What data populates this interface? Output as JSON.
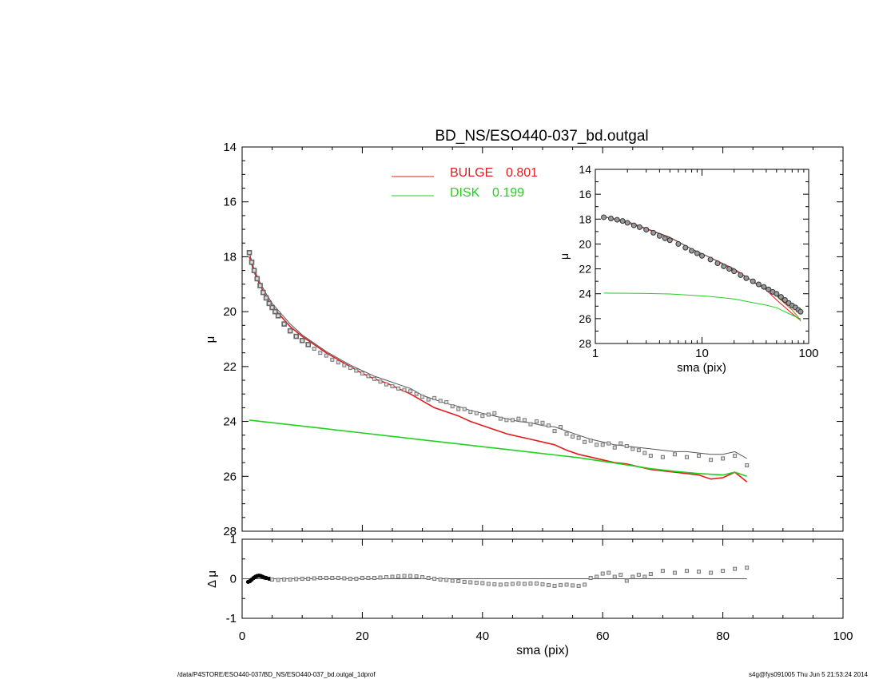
{
  "title": "BD_NS/ESO440-037_bd.outgal",
  "footer_left": "/data/P4STORE/ESO440-037/BD_NS/ESO440-037_bd.outgal_1dprof",
  "footer_right": "s4g@fys091005  Thu Jun  5 21:53:24 2014",
  "colors": {
    "bulge": "#e41a1c",
    "disk": "#1fd21f",
    "model": "#555555",
    "points": "#888888",
    "axis": "#000000"
  },
  "chart_data": [
    {
      "type": "line",
      "panel": "main",
      "title": "BD_NS/ESO440-037_bd.outgal",
      "xlabel": "",
      "ylabel": "μ",
      "xlim": [
        0,
        100
      ],
      "ylim": [
        28,
        14
      ],
      "yticks": [
        "14",
        "16",
        "18",
        "20",
        "22",
        "24",
        "26",
        "28"
      ],
      "legend": [
        {
          "name": "BULGE",
          "value": "0.801",
          "color": "#e41a1c"
        },
        {
          "name": "DISK",
          "value": "0.199",
          "color": "#1fd21f"
        }
      ],
      "legend_placement": "top-center",
      "series": [
        {
          "name": "BULGE",
          "color": "#e41a1c",
          "x": [
            1.2,
            2,
            3,
            4,
            5,
            6,
            8,
            10,
            12,
            14,
            16,
            18,
            20,
            22,
            24,
            26,
            28,
            30,
            32,
            34,
            36,
            38,
            40,
            42,
            44,
            46,
            48,
            50,
            52,
            54,
            56,
            58,
            60,
            62,
            64,
            66,
            68,
            70,
            72,
            74,
            76,
            78,
            80,
            82,
            84
          ],
          "y": [
            18.0,
            18.55,
            19.05,
            19.45,
            19.8,
            20.05,
            20.55,
            20.9,
            21.2,
            21.5,
            21.75,
            22.0,
            22.25,
            22.45,
            22.6,
            22.8,
            23.0,
            23.25,
            23.5,
            23.65,
            23.8,
            24.0,
            24.15,
            24.3,
            24.45,
            24.55,
            24.65,
            24.75,
            24.85,
            25.05,
            25.2,
            25.3,
            25.4,
            25.5,
            25.55,
            25.65,
            25.75,
            25.8,
            25.85,
            25.9,
            25.95,
            26.1,
            26.05,
            25.85,
            26.2
          ]
        },
        {
          "name": "DISK",
          "color": "#1fd21f",
          "x": [
            1.2,
            4,
            8,
            12,
            16,
            20,
            24,
            28,
            32,
            36,
            40,
            44,
            48,
            52,
            56,
            60,
            64,
            68,
            72,
            76,
            80,
            82,
            84
          ],
          "y": [
            23.95,
            24.02,
            24.12,
            24.22,
            24.32,
            24.42,
            24.52,
            24.62,
            24.72,
            24.82,
            24.92,
            25.02,
            25.12,
            25.22,
            25.32,
            25.45,
            25.58,
            25.72,
            25.82,
            25.9,
            25.95,
            25.85,
            26.0
          ]
        },
        {
          "name": "",
          "color": "#555555",
          "x": [
            1.2,
            2,
            3,
            4,
            5,
            6,
            8,
            10,
            12,
            14,
            16,
            18,
            20,
            22,
            24,
            26,
            28,
            30,
            32,
            34,
            36,
            38,
            40,
            42,
            44,
            46,
            48,
            50,
            52,
            54,
            56,
            58,
            60,
            62,
            64,
            66,
            68,
            70,
            72,
            74,
            76,
            78,
            80,
            82,
            84
          ],
          "y": [
            17.85,
            18.45,
            18.95,
            19.35,
            19.7,
            19.95,
            20.45,
            20.85,
            21.15,
            21.45,
            21.7,
            21.95,
            22.15,
            22.35,
            22.5,
            22.65,
            22.8,
            23.05,
            23.2,
            23.35,
            23.45,
            23.6,
            23.7,
            23.8,
            23.9,
            24.0,
            24.05,
            24.15,
            24.2,
            24.35,
            24.5,
            24.65,
            24.75,
            24.85,
            24.9,
            24.95,
            25.0,
            25.05,
            25.1,
            25.1,
            25.15,
            25.2,
            25.2,
            25.1,
            25.35
          ]
        }
      ],
      "points": {
        "x": [
          1.2,
          1.6,
          2.0,
          2.5,
          3.0,
          3.5,
          4.0,
          4.5,
          5.0,
          5.5,
          6,
          7,
          8,
          9,
          10,
          11,
          12,
          13,
          14,
          15,
          16,
          17,
          18,
          19,
          20,
          21,
          22,
          23,
          24,
          25,
          26,
          27,
          28,
          29,
          30,
          31,
          32,
          33,
          34,
          35,
          36,
          37,
          38,
          39,
          40,
          41,
          42,
          43,
          44,
          45,
          46,
          47,
          48,
          49,
          50,
          51,
          52,
          53,
          54,
          55,
          56,
          57,
          58,
          59,
          60,
          61,
          62,
          63,
          64,
          65,
          66,
          67,
          68,
          70,
          72,
          74,
          76,
          78,
          80,
          82,
          84
        ],
        "y": [
          17.85,
          18.2,
          18.5,
          18.8,
          19.05,
          19.3,
          19.5,
          19.7,
          19.85,
          20.0,
          20.15,
          20.45,
          20.7,
          20.9,
          21.05,
          21.2,
          21.35,
          21.5,
          21.6,
          21.75,
          21.85,
          21.95,
          22.05,
          22.15,
          22.25,
          22.35,
          22.45,
          22.55,
          22.65,
          22.72,
          22.8,
          22.85,
          22.9,
          23.0,
          23.1,
          23.2,
          23.15,
          23.25,
          23.3,
          23.45,
          23.55,
          23.55,
          23.65,
          23.7,
          23.8,
          23.75,
          23.7,
          23.9,
          23.95,
          23.95,
          23.9,
          23.95,
          24.1,
          24.0,
          24.05,
          24.15,
          24.35,
          24.2,
          24.45,
          24.55,
          24.6,
          24.75,
          24.7,
          24.85,
          24.85,
          24.8,
          24.95,
          24.8,
          24.9,
          25.0,
          25.05,
          25.15,
          25.25,
          25.3,
          25.2,
          25.3,
          25.25,
          25.4,
          25.35,
          25.25,
          25.6
        ]
      }
    },
    {
      "type": "scatter",
      "panel": "residual",
      "xlabel": "sma (pix)",
      "ylabel": "Δ μ",
      "xlim": [
        0,
        100
      ],
      "ylim": [
        -1,
        1
      ],
      "xticks": [
        "0",
        "20",
        "40",
        "60",
        "80",
        "100"
      ],
      "yticks": [
        "-1",
        "0",
        "1"
      ],
      "zero_line_x": [
        0,
        84
      ],
      "points": {
        "x": [
          1.0,
          1.3,
          1.6,
          1.9,
          2.2,
          2.5,
          2.8,
          3.1,
          3.4,
          3.7,
          4.0,
          4.5,
          5,
          6,
          7,
          8,
          9,
          10,
          11,
          12,
          13,
          14,
          15,
          16,
          17,
          18,
          19,
          20,
          21,
          22,
          23,
          24,
          25,
          26,
          27,
          28,
          29,
          30,
          31,
          32,
          33,
          34,
          35,
          36,
          37,
          38,
          39,
          40,
          41,
          42,
          43,
          44,
          45,
          46,
          47,
          48,
          49,
          50,
          51,
          52,
          53,
          54,
          55,
          56,
          57,
          58,
          59,
          60,
          61,
          62,
          63,
          64,
          65,
          66,
          67,
          68,
          70,
          72,
          74,
          76,
          78,
          80,
          82,
          84
        ],
        "y": [
          -0.08,
          -0.06,
          -0.02,
          0.02,
          0.05,
          0.07,
          0.08,
          0.07,
          0.05,
          0.03,
          0.02,
          0.0,
          -0.02,
          -0.03,
          -0.02,
          -0.02,
          -0.01,
          0.0,
          0.0,
          0.01,
          0.02,
          0.02,
          0.02,
          0.02,
          0.01,
          0.0,
          0.0,
          0.02,
          0.02,
          0.02,
          0.03,
          0.04,
          0.05,
          0.06,
          0.07,
          0.07,
          0.06,
          0.04,
          0.02,
          0.0,
          -0.02,
          -0.03,
          -0.05,
          -0.06,
          -0.08,
          -0.09,
          -0.1,
          -0.11,
          -0.13,
          -0.14,
          -0.15,
          -0.14,
          -0.13,
          -0.12,
          -0.13,
          -0.12,
          -0.12,
          -0.14,
          -0.16,
          -0.18,
          -0.16,
          -0.15,
          -0.17,
          -0.18,
          -0.15,
          0.02,
          0.05,
          0.13,
          0.15,
          0.05,
          0.1,
          -0.05,
          0.05,
          0.1,
          0.05,
          0.12,
          0.2,
          0.15,
          0.2,
          0.18,
          0.15,
          0.2,
          0.25,
          0.28
        ]
      }
    },
    {
      "type": "line",
      "panel": "inset",
      "xlabel": "sma (pix)",
      "ylabel": "μ",
      "xscale": "log",
      "xlim": [
        1,
        100
      ],
      "ylim": [
        28,
        14
      ],
      "xticks": [
        "1",
        "10",
        "100"
      ],
      "yticks": [
        "14",
        "16",
        "18",
        "20",
        "22",
        "24",
        "26",
        "28"
      ],
      "series": [
        {
          "name": "BULGE",
          "color": "#e41a1c",
          "x": [
            1.2,
            2,
            3,
            5,
            8,
            12,
            20,
            30,
            40,
            50,
            60,
            70,
            80,
            84
          ],
          "y": [
            17.8,
            18.3,
            18.8,
            19.5,
            20.4,
            21.1,
            22.0,
            23.0,
            23.7,
            24.5,
            25.1,
            25.6,
            26.0,
            26.1
          ]
        },
        {
          "name": "DISK",
          "color": "#1fd21f",
          "x": [
            1.2,
            2,
            3,
            5,
            8,
            12,
            20,
            30,
            40,
            50,
            60,
            70,
            80,
            84
          ],
          "y": [
            23.95,
            23.96,
            23.98,
            24.02,
            24.12,
            24.22,
            24.42,
            24.72,
            24.92,
            25.12,
            25.45,
            25.72,
            25.95,
            26.0
          ]
        },
        {
          "name": "",
          "color": "#b87020",
          "x": [
            30,
            40,
            50,
            60,
            70,
            80,
            84
          ],
          "y": [
            23.1,
            23.6,
            24.2,
            24.8,
            25.3,
            25.9,
            26.2
          ]
        },
        {
          "name": "",
          "color": "#555555",
          "x": [
            1.2,
            2,
            3,
            5,
            8,
            12,
            20,
            30,
            40,
            50,
            60,
            70,
            80,
            84
          ],
          "y": [
            17.8,
            18.2,
            18.75,
            19.45,
            20.4,
            21.1,
            22.1,
            23.0,
            23.65,
            24.1,
            24.75,
            25.0,
            25.2,
            25.3
          ]
        }
      ],
      "points": {
        "x": [
          1.2,
          1.4,
          1.6,
          1.8,
          2,
          2.3,
          2.6,
          3,
          3.5,
          4,
          4.5,
          5,
          6,
          7,
          8,
          9,
          10,
          12,
          14,
          16,
          18,
          20,
          23,
          26,
          30,
          34,
          38,
          42,
          46,
          50,
          55,
          60,
          65,
          70,
          75,
          80,
          84
        ],
        "y": [
          17.85,
          17.95,
          18.05,
          18.15,
          18.3,
          18.5,
          18.65,
          18.85,
          19.1,
          19.35,
          19.55,
          19.7,
          20.0,
          20.3,
          20.55,
          20.75,
          20.95,
          21.25,
          21.55,
          21.8,
          22.0,
          22.2,
          22.5,
          22.75,
          23.0,
          23.25,
          23.45,
          23.65,
          23.85,
          24.0,
          24.25,
          24.5,
          24.75,
          24.95,
          25.1,
          25.3,
          25.45
        ]
      }
    }
  ]
}
